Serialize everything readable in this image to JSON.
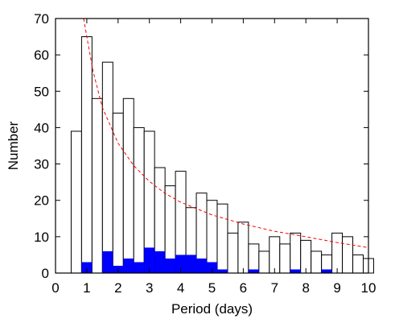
{
  "chart_data": {
    "type": "bar",
    "xlabel": "Period (days)",
    "ylabel": "Number",
    "xlim": [
      0,
      10
    ],
    "ylim": [
      0,
      70
    ],
    "bin_width": 0.333,
    "xticks": [
      "0",
      "1",
      "2",
      "3",
      "4",
      "5",
      "6",
      "7",
      "8",
      "9",
      "10"
    ],
    "yticks": [
      "0",
      "10",
      "20",
      "30",
      "40",
      "50",
      "60",
      "70"
    ],
    "x": [
      0.5,
      0.833,
      1.167,
      1.5,
      1.833,
      2.167,
      2.5,
      2.833,
      3.167,
      3.5,
      3.833,
      4.167,
      4.5,
      4.833,
      5.167,
      5.5,
      5.833,
      6.167,
      6.5,
      6.833,
      7.167,
      7.5,
      7.833,
      8.167,
      8.5,
      8.833,
      9.167,
      9.5
    ],
    "series": [
      {
        "values": [
          39,
          65,
          48,
          58,
          44,
          48,
          40,
          39,
          29,
          24,
          28,
          18,
          22,
          20,
          19,
          11,
          14,
          8,
          6,
          10,
          8,
          11,
          9,
          6,
          5,
          11,
          10,
          5
        ],
        "color": "#ffffff"
      },
      {
        "values": [
          0,
          3,
          0,
          6,
          2,
          4,
          3,
          7,
          6,
          4,
          5,
          5,
          4,
          3,
          1,
          0,
          0,
          1,
          0,
          0,
          0,
          1,
          0,
          0,
          1,
          0,
          0,
          0
        ],
        "color": "#0000ff"
      }
    ],
    "extra_bars": [
      {
        "x": 9.833,
        "value": 4
      }
    ],
    "fit_curve": {
      "type": "dashed-line",
      "color": "#ff0000",
      "x": [
        0.9,
        1.0,
        1.2,
        1.5,
        2.0,
        2.5,
        3.0,
        3.5,
        4.0,
        5.0,
        6.0,
        7.0,
        8.0,
        9.0,
        10.0
      ],
      "y": [
        70,
        65,
        55.5,
        45.5,
        35.7,
        29.5,
        25.2,
        21.9,
        19.5,
        16.0,
        13.5,
        11.5,
        10.0,
        8.4,
        7.0
      ]
    }
  }
}
